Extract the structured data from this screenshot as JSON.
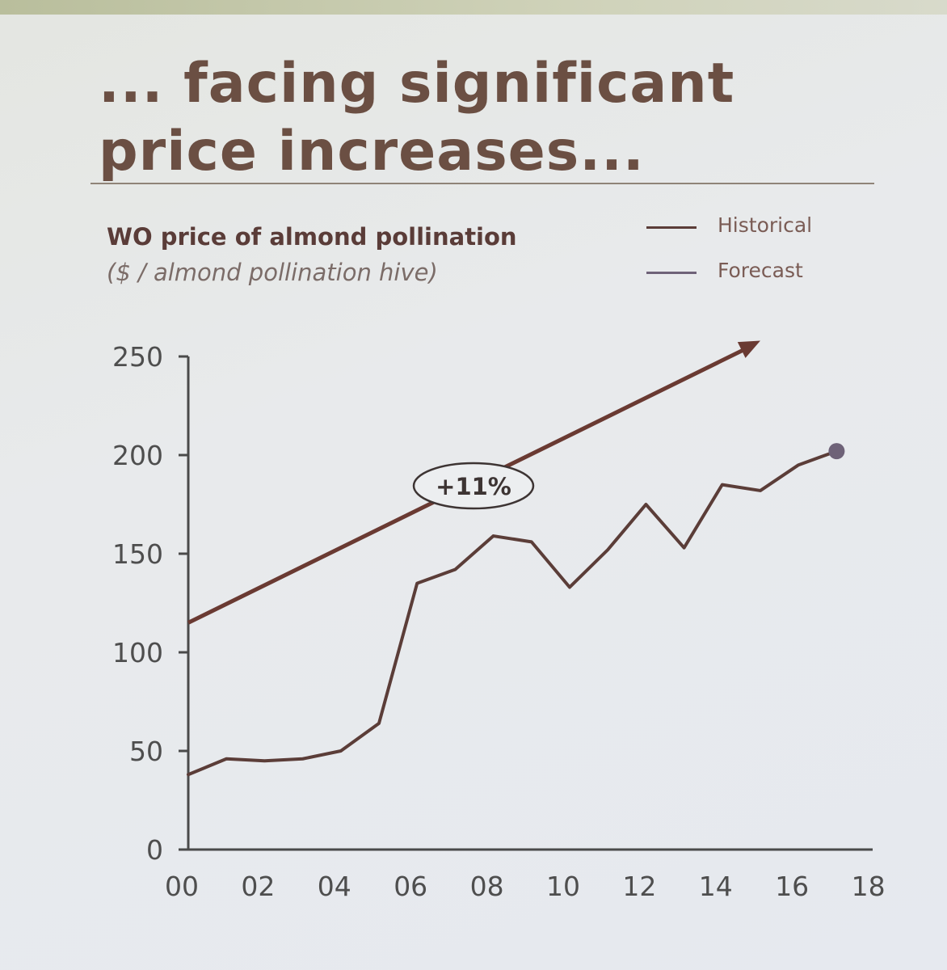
{
  "slide": {
    "title_line1": "... facing significant",
    "title_line2": "price increases..."
  },
  "colors": {
    "historical": "#5b3d38",
    "forecast": "#6e6278",
    "trend_arrow": "#6a3a32",
    "axis": "#4a4a4a",
    "tick_label": "#4e4e4e"
  },
  "chart_data": {
    "type": "line",
    "title": "WO price of almond pollination",
    "subtitle": "($ / almond pollination hive)",
    "x_tick_labels": [
      "00",
      "02",
      "04",
      "06",
      "08",
      "10",
      "12",
      "14",
      "16",
      "18"
    ],
    "y_tick_labels": [
      "0",
      "50",
      "100",
      "150",
      "200",
      "250"
    ],
    "xlim": [
      0,
      18
    ],
    "ylim": [
      0,
      250
    ],
    "legend": [
      {
        "name": "Historical",
        "color": "#5b3d38"
      },
      {
        "name": "Forecast",
        "color": "#6e6278"
      }
    ],
    "legend_position": "top-right",
    "series": [
      {
        "name": "Historical",
        "x": [
          0,
          1,
          2,
          3,
          4,
          5,
          6,
          7,
          8,
          9,
          10,
          11,
          12,
          13,
          14,
          15,
          16,
          17
        ],
        "values": [
          38,
          46,
          45,
          46,
          50,
          64,
          135,
          142,
          159,
          156,
          133,
          152,
          175,
          153,
          185,
          182,
          195,
          202
        ]
      },
      {
        "name": "Forecast",
        "x": [
          17
        ],
        "values": [
          202
        ]
      }
    ],
    "trend_arrow": {
      "label": "+11%",
      "from": {
        "x": 0,
        "y": 115
      },
      "to": {
        "x": 15,
        "y": 258
      }
    },
    "grid": false
  }
}
